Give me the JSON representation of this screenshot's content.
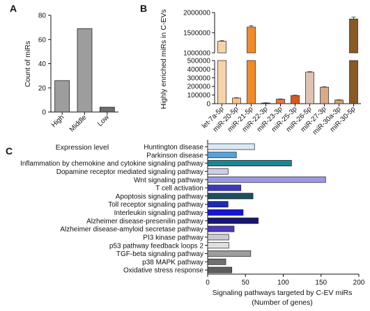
{
  "panels": {
    "a": "A",
    "b": "B",
    "c": "C"
  },
  "chart_data": [
    {
      "type": "bar",
      "panel": "A",
      "categories": [
        "High",
        "Middle",
        "Low"
      ],
      "values": [
        26,
        69,
        4
      ],
      "xlabel": "Expression level",
      "ylabel": "Count of miRs",
      "ylim": [
        0,
        80
      ],
      "yticks": [
        0,
        20,
        40,
        60,
        80
      ],
      "bar_colors": [
        "#9d9d9d",
        "#9d9d9d",
        "#6e6e6e"
      ],
      "grid": false
    },
    {
      "type": "bar",
      "panel": "B",
      "categories": [
        "let-7a-5p",
        "miR-20-5p",
        "miR-21-5p",
        "miR-22-3p",
        "miR-23-3p",
        "miR-25-3p",
        "miR-26-5p",
        "miR-27-3p",
        "miR-30a-3p",
        "miR-30-5p"
      ],
      "values": [
        1290000,
        65000,
        1640000,
        8000,
        52000,
        95000,
        365000,
        192000,
        42000,
        1840000
      ],
      "errors": [
        15000,
        4000,
        35000,
        2000,
        3000,
        3000,
        6000,
        4000,
        3000,
        45000
      ],
      "xlabel": "",
      "ylabel": "Highly enriched miRs in C-EVs",
      "y_broken": true,
      "y_lower_range": [
        0,
        500000
      ],
      "y_upper_range": [
        1000000,
        2000000
      ],
      "yticks_lower": [
        "0",
        "100000",
        "200000",
        "300000",
        "400000",
        "500000"
      ],
      "yticks_upper": [
        "1000000",
        "1500000",
        "2000000"
      ],
      "bar_colors": [
        "#f7d4a7",
        "#f3c292",
        "#f08a2c",
        "#333333",
        "#e8743a",
        "#d9581d",
        "#dfc2b0",
        "#d8aa8a",
        "#cfa46e",
        "#8a5a26"
      ],
      "grid": false
    },
    {
      "type": "bar",
      "panel": "C",
      "orientation": "horizontal",
      "categories": [
        "Huntington disease",
        "Parkinson disease",
        "Inflammation by chemokine and cytokine signaling pathway",
        "Dopamine receptor mediated signaling pathway",
        "Wnt signaling pathway",
        "T cell activation",
        "Apoptosis signaling pathway",
        "Toll receptor signaling pathway",
        "Interleukin signaling pathway",
        "Alzheimer disease-presenilin pathway",
        "Alzheimer disease-amyloid secretase pathway",
        "PI3 kinase pathway",
        "p53 pathway feedback loops 2",
        "TGF-beta signaling pathway",
        "p38 MAPK pathway",
        "Oxidative stress response"
      ],
      "values": [
        62,
        38,
        111,
        27,
        156,
        44,
        60,
        27,
        47,
        67,
        35,
        28,
        28,
        57,
        24,
        32
      ],
      "bar_colors": [
        "#dbe9f4",
        "#54a3dc",
        "#1b8593",
        "#cfcdea",
        "#9b97e6",
        "#3c36c4",
        "#1c4f5e",
        "#1e2bb5",
        "#1515d6",
        "#17176f",
        "#4f37b8",
        "#c9c9cf",
        "#e0e0e0",
        "#9e9e9e",
        "#707070",
        "#5e5e5e"
      ],
      "xlabel": "Signaling pathways targeted by C-EV miRs",
      "xlabel2": "(Number of genes)",
      "xlim": [
        0,
        200
      ],
      "xticks": [
        0,
        50,
        100,
        150,
        200
      ],
      "grid": false
    }
  ]
}
